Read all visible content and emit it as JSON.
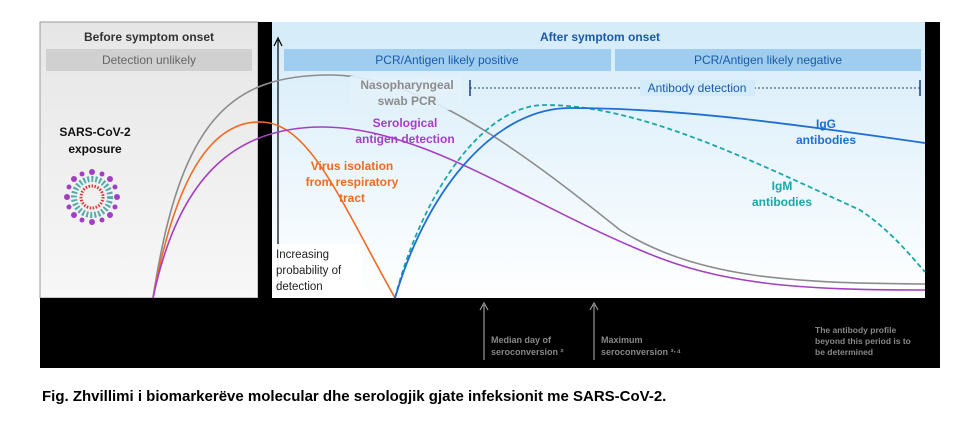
{
  "header": {
    "before": "Before symptom onset",
    "after": "After symptom onset",
    "detection_unlikely": "Detection unlikely",
    "pcr_positive": "PCR/Antigen likely positive",
    "pcr_negative": "PCR/Antigen likely negative",
    "antibody_detection": "Antibody detection"
  },
  "exposure": {
    "line1": "SARS-CoV-2",
    "line2": "exposure"
  },
  "axis": {
    "line1": "Increasing",
    "line2": "probability of",
    "line3": "detection"
  },
  "labels": {
    "pcr1": "Nasopharyngeal",
    "pcr2": "swab PCR",
    "sero1": "Serological",
    "sero2": "antigen detection",
    "virus1": "Virus isolation",
    "virus2": "from respiratory",
    "virus3": "tract",
    "igg1": "IgG",
    "igg2": "antibodies",
    "igm1": "IgM",
    "igm2": "antibodies"
  },
  "footer": {
    "median1": "Median day of",
    "median2": "seroconversion ²",
    "max1": "Maximum",
    "max2": "seroconversion ³·⁴",
    "note1": "The antibody profile",
    "note2": "beyond this period is to",
    "note3": "be determined"
  },
  "caption": "Fig. Zhvillimi i biomarkerëve molecular dhe serologjik gjate infeksionit me SARS-CoV-2.",
  "colors": {
    "pcr": "#8c8c8c",
    "virus": "#f26a21",
    "sero": "#a43fc4",
    "igg": "#1f6fd1",
    "igm": "#1aa7a8"
  }
}
